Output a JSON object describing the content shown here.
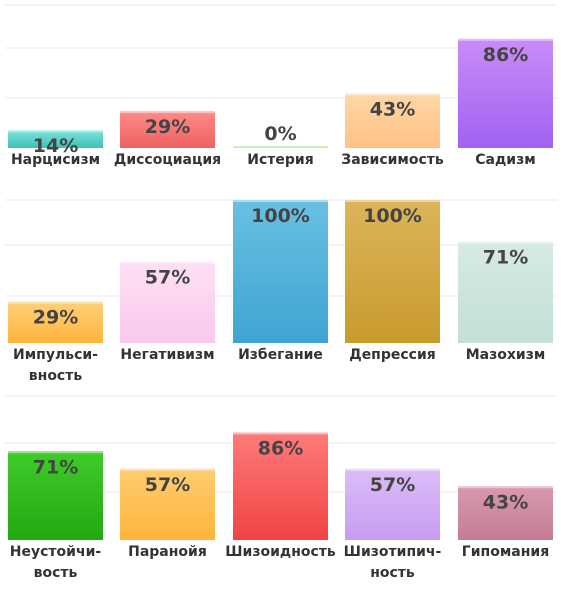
{
  "chart_data": [
    {
      "type": "bar",
      "ylim": [
        0,
        100
      ],
      "grid": true,
      "categories": [
        "Нарцисизм",
        "Диссоциация",
        "Истерия",
        "Зависимость",
        "Садизм"
      ],
      "values": [
        14,
        29,
        0,
        43,
        86
      ],
      "value_labels": [
        "14%",
        "29%",
        "0%",
        "43%",
        "86%"
      ],
      "category_label_lines": [
        [
          "Нарцисизм"
        ],
        [
          "Диссоциация"
        ],
        [
          "Истерия"
        ],
        [
          "Зависимость"
        ],
        [
          "Садизм"
        ]
      ],
      "colors": [
        [
          "#7fe3dc",
          "#3fc0b6"
        ],
        [
          "#ff8a8a",
          "#ef6161"
        ],
        [
          "#b3ec8f",
          "#8fdb66"
        ],
        [
          "#ffd7a8",
          "#ffc183"
        ],
        [
          "#c98cf7",
          "#a162f2"
        ]
      ]
    },
    {
      "type": "bar",
      "ylim": [
        0,
        100
      ],
      "grid": true,
      "categories": [
        "Импульси-вность",
        "Негативизм",
        "Избегание",
        "Депрессия",
        "Мазохизм"
      ],
      "values": [
        29,
        57,
        100,
        100,
        71
      ],
      "value_labels": [
        "29%",
        "57%",
        "100%",
        "100%",
        "71%"
      ],
      "category_label_lines": [
        [
          "Импульси-",
          "вность"
        ],
        [
          "Негативизм"
        ],
        [
          "Избегание"
        ],
        [
          "Депрессия"
        ],
        [
          "Мазохизм"
        ]
      ],
      "colors": [
        [
          "#ffd17a",
          "#ffb43c"
        ],
        [
          "#ffe0f5",
          "#f9c8ec"
        ],
        [
          "#6ac0e3",
          "#3fa4d3"
        ],
        [
          "#dcb55a",
          "#c89b2d"
        ],
        [
          "#d6eae3",
          "#c3dfd6"
        ]
      ]
    },
    {
      "type": "bar",
      "ylim": [
        0,
        100
      ],
      "grid": true,
      "categories": [
        "Неустойчи-вость",
        "Паранойя",
        "Шизоидность",
        "Шизотипич-ность",
        "Гипомания"
      ],
      "values": [
        71,
        57,
        86,
        57,
        43
      ],
      "value_labels": [
        "71%",
        "57%",
        "86%",
        "57%",
        "43%"
      ],
      "category_label_lines": [
        [
          "Неустойчи-",
          "вость"
        ],
        [
          "Паранойя"
        ],
        [
          "Шизоидность"
        ],
        [
          "Шизотипич-",
          "ность"
        ],
        [
          "Гипомания"
        ]
      ],
      "colors": [
        [
          "#3fcc2a",
          "#23a812"
        ],
        [
          "#ffcd6e",
          "#ffb43c"
        ],
        [
          "#ff7a7a",
          "#f04444"
        ],
        [
          "#dbbdf7",
          "#c79cf2"
        ],
        [
          "#d79aac",
          "#c47d93"
        ]
      ]
    }
  ]
}
